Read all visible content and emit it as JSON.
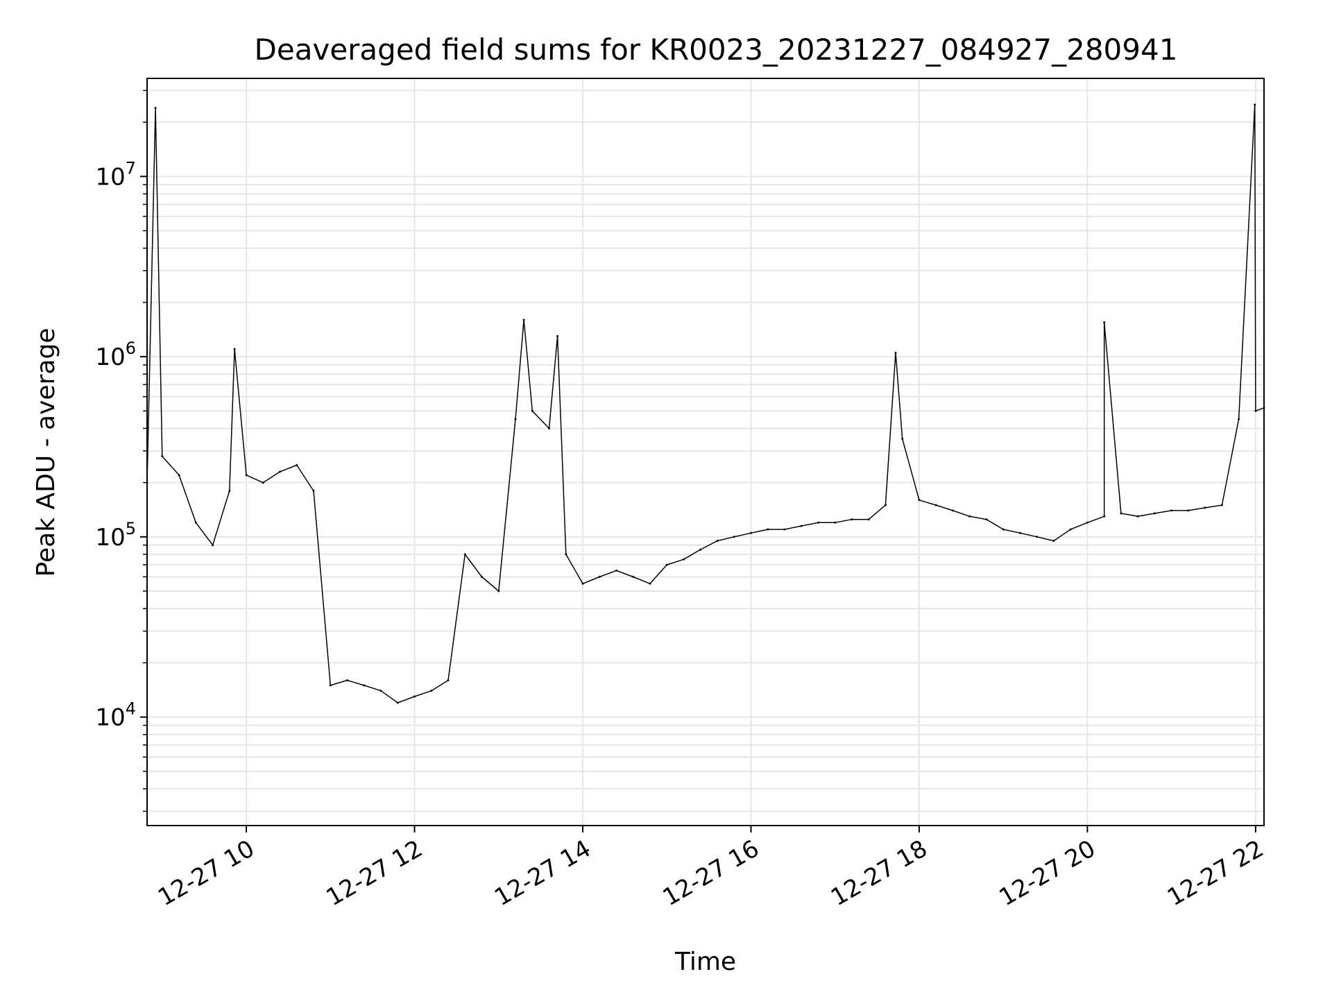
{
  "chart_data": {
    "type": "line",
    "title": "Deaveraged field sums for KR0023_20231227_084927_280941",
    "xlabel": "Time",
    "ylabel": "Peak ADU - average",
    "yscale": "log",
    "ylim": [
      2500,
      35000000
    ],
    "xlim_hours": [
      8.82,
      22.1
    ],
    "grid": true,
    "grid_minor_y": true,
    "line_color": "#000000",
    "x_ticks": [
      {
        "hour": 10,
        "label": "12-27 10"
      },
      {
        "hour": 12,
        "label": "12-27 12"
      },
      {
        "hour": 14,
        "label": "12-27 14"
      },
      {
        "hour": 16,
        "label": "12-27 16"
      },
      {
        "hour": 18,
        "label": "12-27 18"
      },
      {
        "hour": 20,
        "label": "12-27 20"
      },
      {
        "hour": 22,
        "label": "12-27 22"
      }
    ],
    "y_ticks": [
      {
        "value": 10000,
        "base": "10",
        "exp": "4"
      },
      {
        "value": 100000,
        "base": "10",
        "exp": "5"
      },
      {
        "value": 1000000,
        "base": "10",
        "exp": "6"
      },
      {
        "value": 10000000,
        "base": "10",
        "exp": "7"
      }
    ],
    "series": [
      {
        "x_hours": [
          8.82,
          9.0,
          9.2,
          9.4,
          9.6,
          9.8,
          10.0,
          10.2,
          10.4,
          10.6,
          10.8,
          11.0,
          11.2,
          11.4,
          11.6,
          11.8,
          12.0,
          12.2,
          12.4,
          12.6,
          12.8,
          13.0,
          13.2,
          13.4,
          13.6,
          13.8,
          14.0,
          14.2,
          14.4,
          14.6,
          14.8,
          15.0,
          15.2,
          15.4,
          15.6,
          15.8,
          16.0,
          16.2,
          16.4,
          16.6,
          16.8,
          17.0,
          17.2,
          17.4,
          17.6,
          17.8,
          18.0,
          18.2,
          18.4,
          18.6,
          18.8,
          19.0,
          19.2,
          19.4,
          19.6,
          19.8,
          20.0,
          20.2,
          20.4,
          20.6,
          20.8,
          21.0,
          21.2,
          21.4,
          21.6,
          21.8,
          22.0,
          22.1
        ],
        "values": [
          200000,
          280000,
          220000,
          120000,
          90000,
          180000,
          220000,
          200000,
          230000,
          250000,
          180000,
          15000,
          16000,
          15000,
          14000,
          12000,
          13000,
          14000,
          16000,
          80000,
          60000,
          50000,
          450000,
          500000,
          400000,
          80000,
          55000,
          60000,
          65000,
          60000,
          55000,
          70000,
          75000,
          85000,
          95000,
          100000,
          105000,
          110000,
          110000,
          115000,
          120000,
          120000,
          125000,
          125000,
          150000,
          350000,
          160000,
          150000,
          140000,
          130000,
          125000,
          110000,
          105000,
          100000,
          95000,
          110000,
          120000,
          130000,
          135000,
          130000,
          135000,
          140000,
          140000,
          145000,
          150000,
          450000,
          500000,
          520000
        ],
        "spikes": [
          {
            "hour": 8.92,
            "value": 24000000
          },
          {
            "hour": 9.86,
            "value": 1100000
          },
          {
            "hour": 13.3,
            "value": 1600000
          },
          {
            "hour": 13.7,
            "value": 1300000
          },
          {
            "hour": 17.72,
            "value": 1050000
          },
          {
            "hour": 20.2,
            "value": 1550000
          },
          {
            "hour": 21.99,
            "value": 25000000
          }
        ]
      }
    ]
  }
}
